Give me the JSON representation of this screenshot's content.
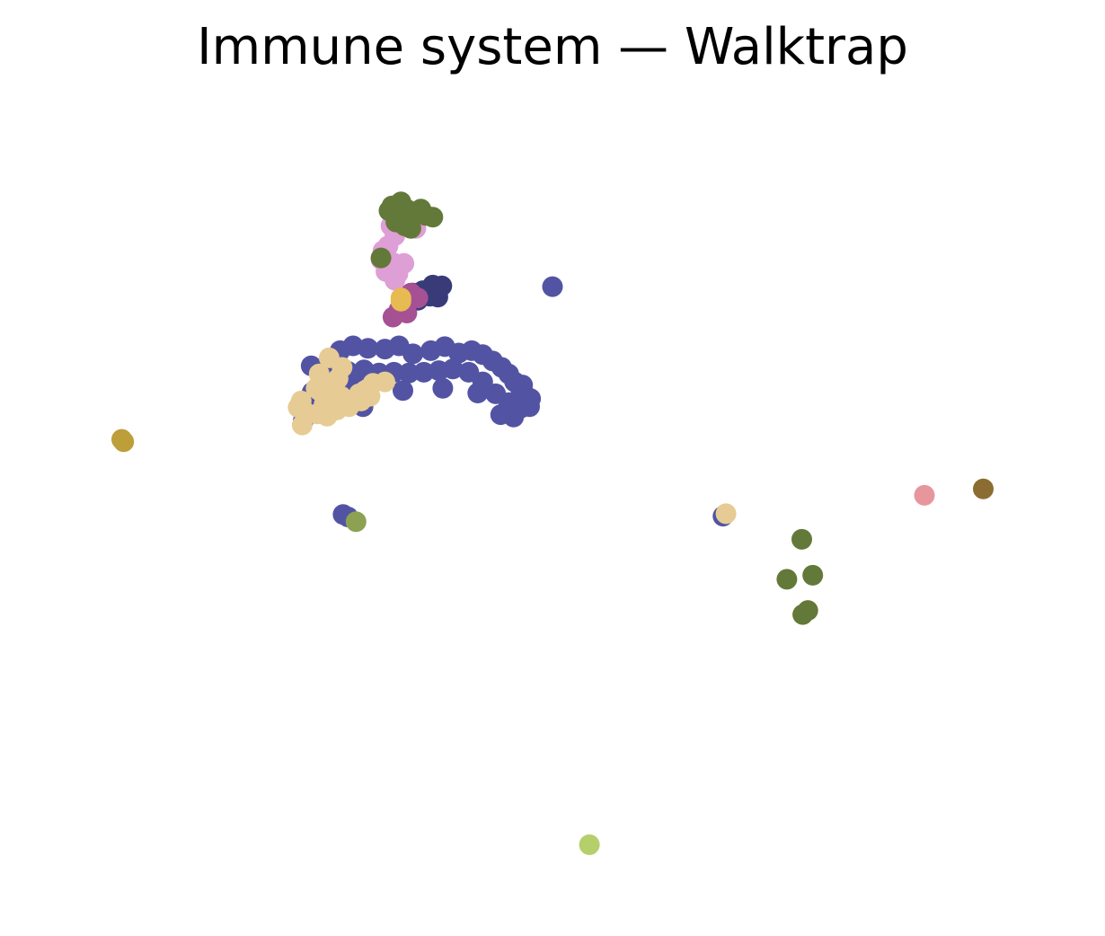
{
  "chart_data": {
    "type": "scatter",
    "title": "Immune system — Walktrap",
    "xlabel": "",
    "ylabel": "",
    "axes_visible": false,
    "grid": false,
    "legend": "none",
    "xlim": [
      0,
      100
    ],
    "ylim": [
      0,
      100
    ],
    "series": [
      {
        "color": "#5254a3",
        "points": [
          [
            25.8,
            33.4
          ],
          [
            27.5,
            33.5
          ],
          [
            28.7,
            31.5
          ],
          [
            30.0,
            30.9
          ],
          [
            31.5,
            31.2
          ],
          [
            33.2,
            31.3
          ],
          [
            34.6,
            30.9
          ],
          [
            36.0,
            31.9
          ],
          [
            37.8,
            31.5
          ],
          [
            39.2,
            31.0
          ],
          [
            40.6,
            31.8
          ],
          [
            41.9,
            31.5
          ],
          [
            43.0,
            32.0
          ],
          [
            44.0,
            32.8
          ],
          [
            44.9,
            33.6
          ],
          [
            45.6,
            34.4
          ],
          [
            46.2,
            35.4
          ],
          [
            46.8,
            36.3
          ],
          [
            47.3,
            37.1
          ],
          [
            47.8,
            37.5
          ],
          [
            47.7,
            38.5
          ],
          [
            46.8,
            38.7
          ],
          [
            45.6,
            38.0
          ],
          [
            44.3,
            36.9
          ],
          [
            43.0,
            35.4
          ],
          [
            41.6,
            34.2
          ],
          [
            40.0,
            33.8
          ],
          [
            38.6,
            34.0
          ],
          [
            37.1,
            34.2
          ],
          [
            35.6,
            34.3
          ],
          [
            34.1,
            34.2
          ],
          [
            32.6,
            34.3
          ],
          [
            31.1,
            33.9
          ],
          [
            29.5,
            34.1
          ],
          [
            28.1,
            34.7
          ],
          [
            26.8,
            35.6
          ],
          [
            25.9,
            36.7
          ],
          [
            25.3,
            38.6
          ],
          [
            25.0,
            40.3
          ],
          [
            31.0,
            38.5
          ],
          [
            35.0,
            36.5
          ],
          [
            39.0,
            36.2
          ],
          [
            42.5,
            36.8
          ],
          [
            46.1,
            39.8
          ],
          [
            47.0,
            35.8
          ],
          [
            44.8,
            39.5
          ],
          [
            30.0,
            35.8
          ],
          [
            33.0,
            34.8
          ],
          [
            50.0,
            23.5
          ],
          [
            29.5,
            52.3
          ],
          [
            29.0,
            52.0
          ],
          [
            67.1,
            52.2
          ]
        ]
      },
      {
        "color": "#e7cb94",
        "points": [
          [
            27.6,
            32.4
          ],
          [
            28.9,
            33.6
          ],
          [
            28.5,
            35.0
          ],
          [
            27.2,
            35.5
          ],
          [
            26.6,
            36.5
          ],
          [
            28.0,
            37.4
          ],
          [
            27.1,
            38.2
          ],
          [
            26.4,
            39.4
          ],
          [
            25.0,
            38.9
          ],
          [
            24.9,
            40.8
          ],
          [
            24.8,
            37.8
          ],
          [
            24.5,
            38.6
          ],
          [
            27.4,
            39.7
          ],
          [
            28.4,
            38.9
          ],
          [
            29.6,
            38.5
          ],
          [
            30.8,
            37.8
          ],
          [
            31.7,
            37.2
          ],
          [
            33.2,
            35.4
          ],
          [
            32.0,
            35.6
          ],
          [
            31.2,
            36.5
          ],
          [
            26.6,
            34.4
          ],
          [
            26.3,
            36.2
          ],
          [
            28.8,
            37.2
          ],
          [
            30.6,
            36.9
          ],
          [
            67.4,
            51.9
          ]
        ]
      },
      {
        "color": "#393b79",
        "points": [
          [
            36.0,
            24.3
          ],
          [
            37.0,
            24.0
          ],
          [
            38.0,
            23.3
          ],
          [
            38.9,
            23.4
          ],
          [
            37.7,
            24.7
          ],
          [
            36.5,
            25.2
          ],
          [
            38.5,
            24.8
          ]
        ]
      },
      {
        "color": "#a55194",
        "points": [
          [
            35.8,
            24.3
          ],
          [
            35.0,
            25.2
          ],
          [
            34.6,
            26.4
          ],
          [
            34.0,
            27.3
          ],
          [
            36.5,
            24.9
          ],
          [
            35.4,
            26.8
          ]
        ]
      },
      {
        "color": "#de9ed6",
        "points": [
          [
            33.8,
            15.9
          ],
          [
            34.2,
            17.1
          ],
          [
            33.5,
            18.4
          ],
          [
            33.0,
            19.0
          ],
          [
            32.8,
            20.1
          ],
          [
            34.0,
            20.5
          ],
          [
            33.3,
            21.6
          ],
          [
            34.5,
            21.9
          ],
          [
            35.1,
            20.6
          ],
          [
            34.2,
            22.7
          ],
          [
            36.3,
            16.2
          ]
        ]
      },
      {
        "color": "#e7ba52",
        "points": [
          [
            34.8,
            24.9
          ],
          [
            34.8,
            25.3
          ]
        ]
      },
      {
        "color": "#637939",
        "points": [
          [
            33.9,
            13.4
          ],
          [
            34.8,
            12.9
          ],
          [
            35.5,
            13.9
          ],
          [
            36.0,
            14.9
          ],
          [
            36.5,
            14.4
          ],
          [
            37.3,
            14.6
          ],
          [
            38.0,
            14.8
          ],
          [
            35.2,
            15.9
          ],
          [
            34.3,
            15.4
          ],
          [
            35.8,
            16.2
          ],
          [
            33.6,
            14.0
          ],
          [
            36.8,
            13.8
          ],
          [
            32.8,
            19.9
          ],
          [
            75.0,
            55.1
          ],
          [
            73.5,
            60.1
          ],
          [
            76.1,
            59.6
          ],
          [
            75.1,
            64.5
          ],
          [
            75.6,
            64.0
          ]
        ]
      },
      {
        "color": "#8ca252",
        "points": [
          [
            30.3,
            52.9
          ]
        ]
      },
      {
        "color": "#bd9e39",
        "points": [
          [
            6.8,
            42.6
          ],
          [
            7.0,
            42.9
          ]
        ]
      },
      {
        "color": "#e7969c",
        "points": [
          [
            87.3,
            49.6
          ]
        ]
      },
      {
        "color": "#8c6d31",
        "points": [
          [
            93.2,
            48.8
          ]
        ]
      },
      {
        "color": "#b5cf6b",
        "points": [
          [
            53.7,
            93.3
          ]
        ]
      }
    ]
  }
}
